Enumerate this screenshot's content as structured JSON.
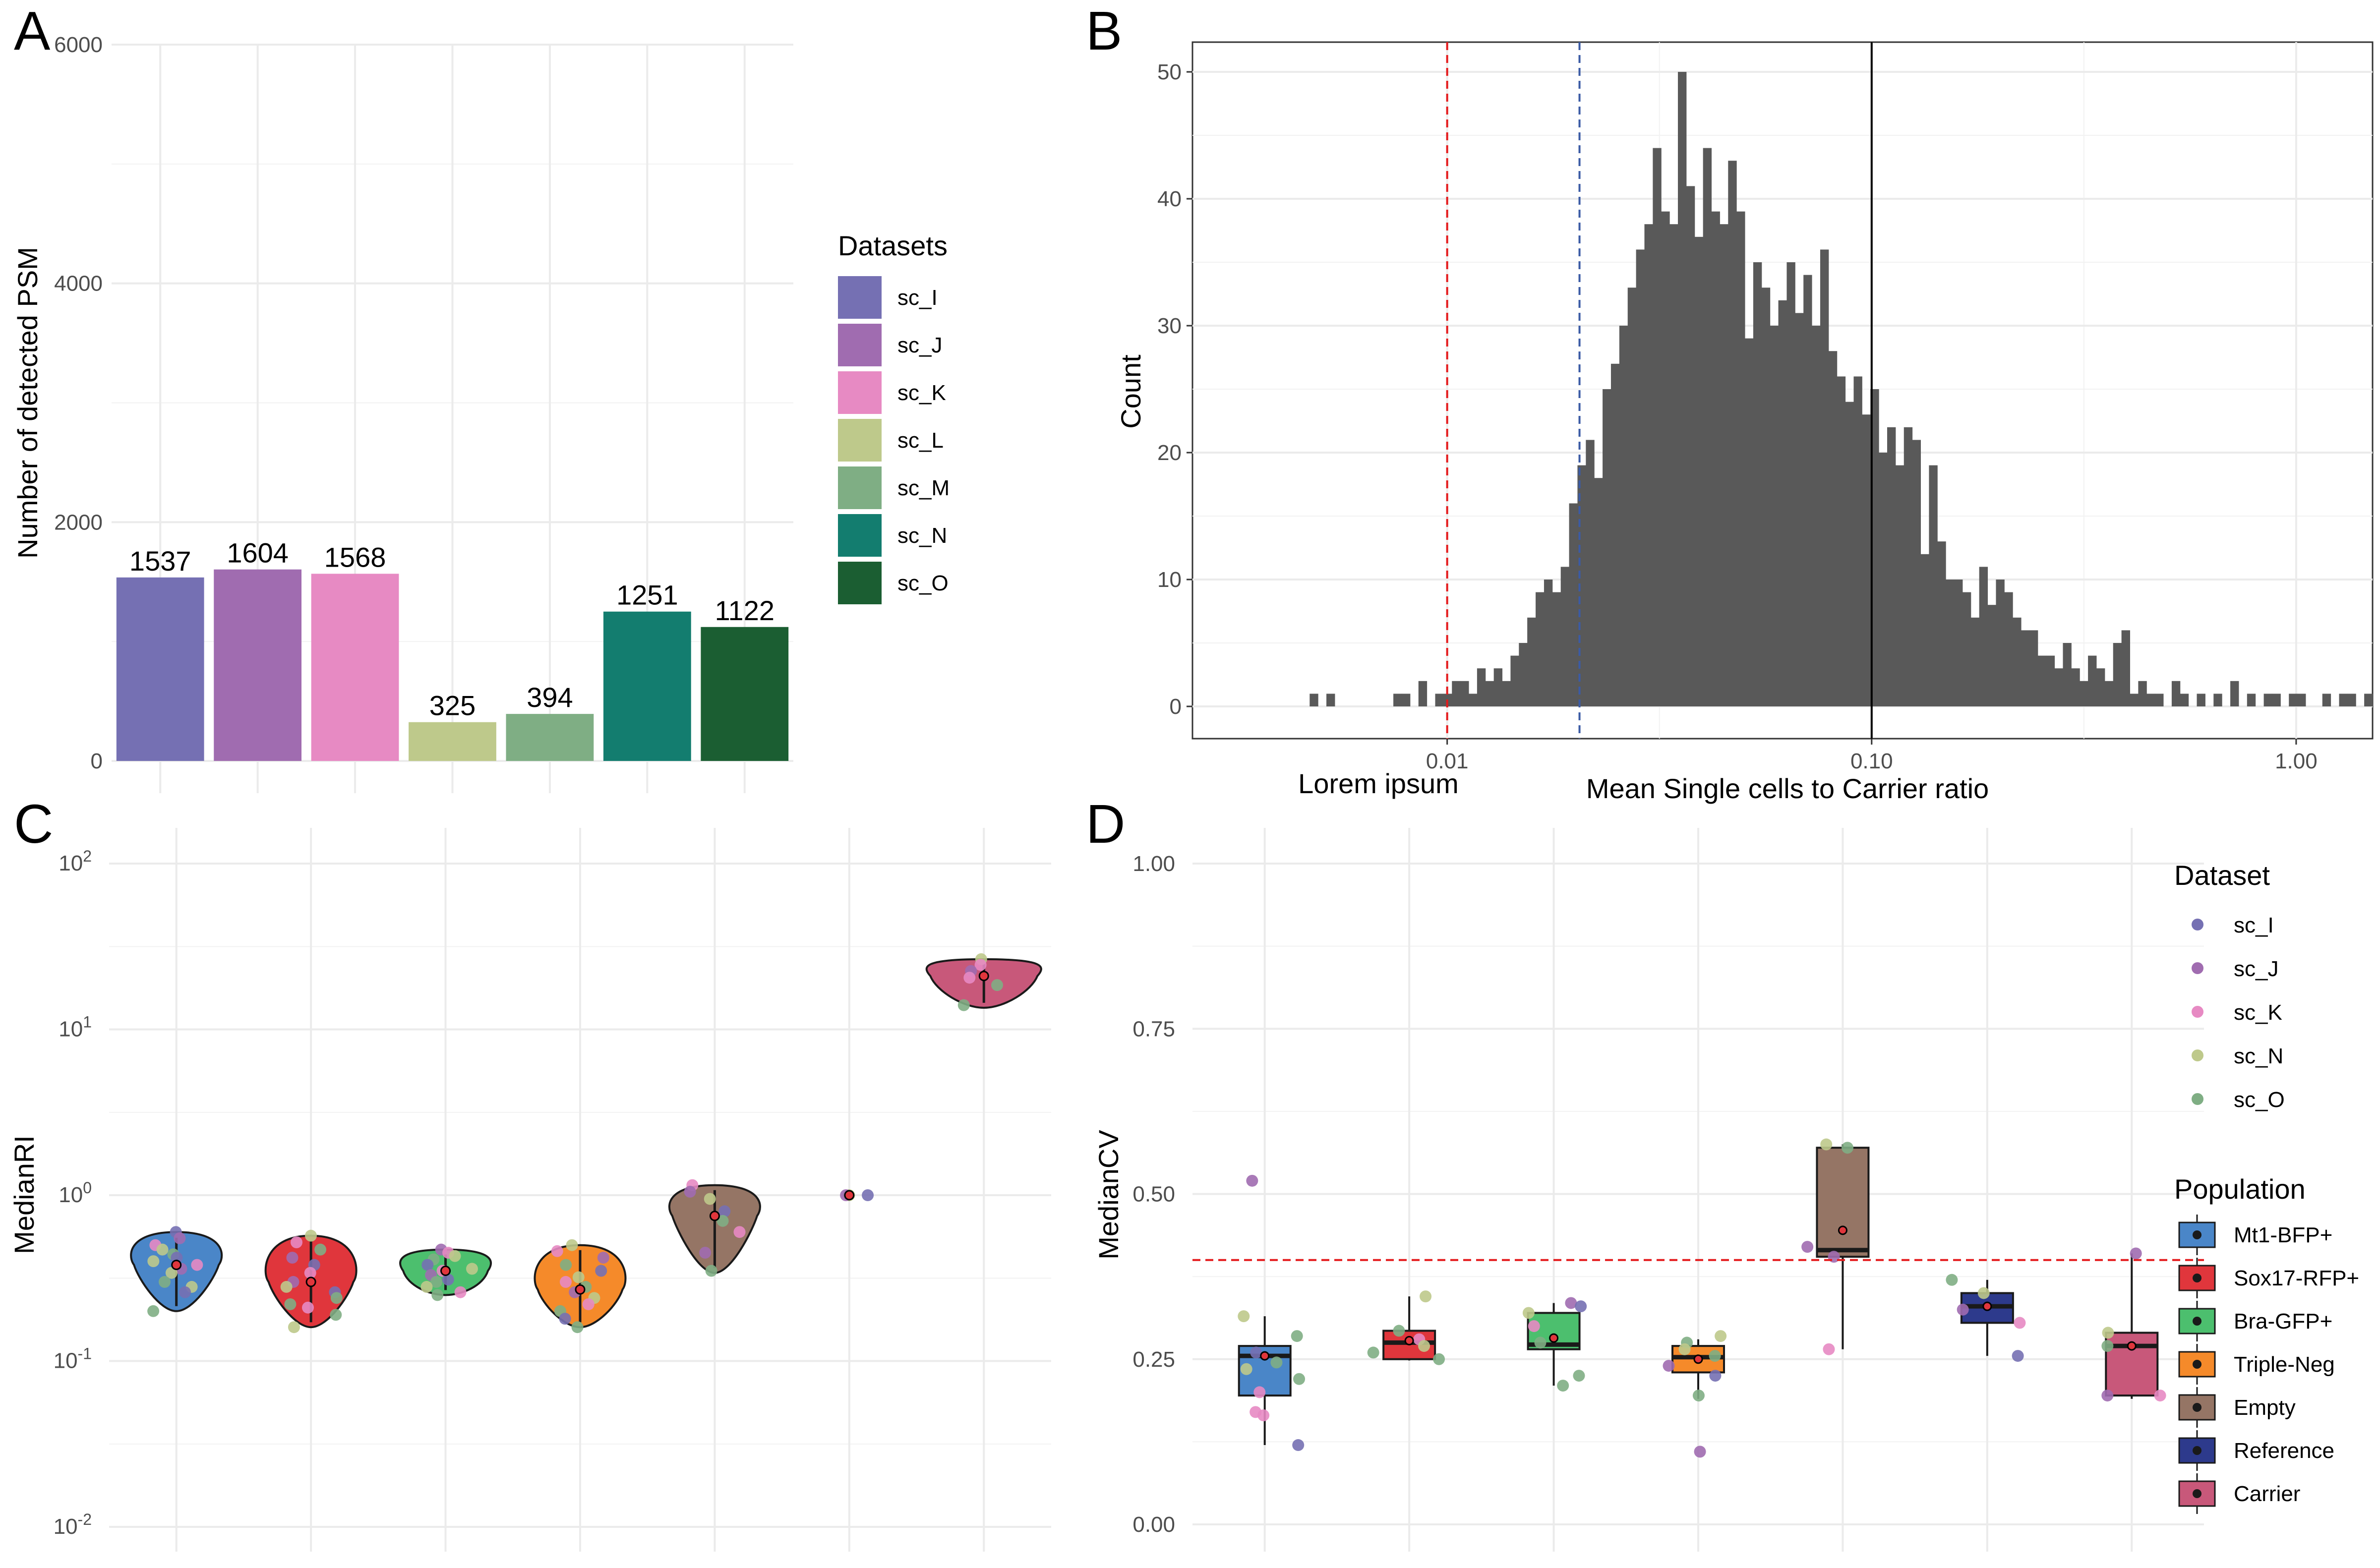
{
  "panels": {
    "A": {
      "letter": "A"
    },
    "B": {
      "letter": "B"
    },
    "C": {
      "letter": "C"
    },
    "D": {
      "letter": "D"
    }
  },
  "chart_data": [
    {
      "panel": "A",
      "type": "bar",
      "ylabel": "Number of detected PSM",
      "ylim": [
        0,
        6000
      ],
      "yticks": [
        0,
        2000,
        4000,
        6000
      ],
      "categories": [
        "sc_I",
        "sc_J",
        "sc_K",
        "sc_L",
        "sc_M",
        "sc_N",
        "sc_O"
      ],
      "values": [
        1537,
        1604,
        1568,
        325,
        394,
        1251,
        1122
      ],
      "colors": [
        "#7570b3",
        "#a06cb0",
        "#e78ac3",
        "#bec98b",
        "#7fae84",
        "#137d6f",
        "#1b5e32"
      ],
      "legend_title": "Datasets",
      "legend_position": "right",
      "grid": true
    },
    {
      "panel": "B",
      "type": "bar",
      "subtype": "histogram",
      "xlabel": "Mean Single cells to Carrier ratio",
      "xscale": "log10",
      "ylabel": "Count",
      "ylim": [
        0,
        52
      ],
      "yticks": [
        0,
        10,
        20,
        30,
        40,
        50
      ],
      "xticks": [
        "0.01",
        "0.10",
        "1.00"
      ],
      "annotation": "Lorem ipsum",
      "bar_color": "#595959",
      "log10_x_range": [
        -2.6,
        0.18
      ],
      "bins": 141,
      "counts": [
        0,
        0,
        0,
        0,
        0,
        0,
        0,
        0,
        0,
        0,
        0,
        0,
        0,
        0,
        1,
        0,
        1,
        0,
        0,
        0,
        0,
        0,
        0,
        0,
        1,
        1,
        0,
        2,
        0,
        1,
        1,
        2,
        2,
        1,
        3,
        2,
        3,
        2,
        4,
        5,
        7,
        9,
        10,
        9,
        11,
        16,
        19,
        21,
        18,
        25,
        27,
        30,
        33,
        36,
        38,
        44,
        39,
        38,
        50,
        41,
        37,
        44,
        39,
        38,
        43,
        39,
        29,
        35,
        33,
        30,
        32,
        35,
        31,
        34,
        30,
        36,
        28,
        26,
        24,
        26,
        23,
        25,
        20,
        22,
        19,
        22,
        21,
        12,
        19,
        13,
        10,
        10,
        9,
        7,
        11,
        8,
        10,
        9,
        7,
        6,
        6,
        4,
        4,
        3,
        5,
        3,
        2,
        4,
        3,
        2,
        5,
        6,
        1,
        2,
        1,
        1,
        0,
        2,
        1,
        0,
        1,
        0,
        1,
        0,
        2,
        0,
        1,
        0,
        1,
        1,
        0,
        1,
        1,
        0,
        0,
        1,
        0,
        1,
        1,
        0,
        1
      ],
      "vlines": [
        {
          "x": 0.01,
          "style": "dashed",
          "color": "#e41a1c"
        },
        {
          "x": 0.0205,
          "style": "dashed",
          "color": "#3b5ba5"
        },
        {
          "x": 0.1,
          "style": "solid",
          "color": "#000000"
        }
      ],
      "grid": true
    },
    {
      "panel": "C",
      "type": "scatter",
      "subtype": "violin",
      "ylabel": "MedianRI",
      "yscale": "log10",
      "ylim": [
        0.01,
        100
      ],
      "yticks": [
        "10^-2",
        "10^-1",
        "10^0",
        "10^1",
        "10^2"
      ],
      "categories": [
        "Mt1-BFP+",
        "Sox17-RFP+",
        "Bra-GFP+",
        "Triple-Neg",
        "Empty",
        "Reference",
        "Carrier"
      ],
      "groups": [
        {
          "name": "Mt1-BFP+",
          "color": "#4a86c8",
          "min": 0.2,
          "max": 0.6,
          "center": 0.38,
          "points": [
            [
              0.6,
              "sc_I"
            ],
            [
              0.55,
              "sc_J"
            ],
            [
              0.5,
              "sc_K"
            ],
            [
              0.47,
              "sc_N"
            ],
            [
              0.44,
              "sc_O"
            ],
            [
              0.42,
              "sc_I"
            ],
            [
              0.4,
              "sc_N"
            ],
            [
              0.38,
              "sc_K"
            ],
            [
              0.36,
              "sc_J"
            ],
            [
              0.34,
              "sc_N"
            ],
            [
              0.3,
              "sc_O"
            ],
            [
              0.28,
              "sc_N"
            ],
            [
              0.26,
              "sc_I"
            ],
            [
              0.2,
              "sc_O"
            ]
          ]
        },
        {
          "name": "Sox17-RFP+",
          "color": "#e0363c",
          "min": 0.16,
          "max": 0.57,
          "center": 0.3,
          "points": [
            [
              0.57,
              "sc_N"
            ],
            [
              0.52,
              "sc_K"
            ],
            [
              0.47,
              "sc_O"
            ],
            [
              0.42,
              "sc_J"
            ],
            [
              0.38,
              "sc_I"
            ],
            [
              0.34,
              "sc_K"
            ],
            [
              0.3,
              "sc_J"
            ],
            [
              0.28,
              "sc_N"
            ],
            [
              0.26,
              "sc_I"
            ],
            [
              0.24,
              "sc_O"
            ],
            [
              0.22,
              "sc_O"
            ],
            [
              0.21,
              "sc_K"
            ],
            [
              0.19,
              "sc_O"
            ],
            [
              0.16,
              "sc_N"
            ]
          ]
        },
        {
          "name": "Bra-GFP+",
          "color": "#4cbf6e",
          "min": 0.25,
          "max": 0.47,
          "center": 0.35,
          "points": [
            [
              0.47,
              "sc_J"
            ],
            [
              0.45,
              "sc_K"
            ],
            [
              0.43,
              "sc_N"
            ],
            [
              0.41,
              "sc_O"
            ],
            [
              0.38,
              "sc_I"
            ],
            [
              0.36,
              "sc_N"
            ],
            [
              0.35,
              "sc_K"
            ],
            [
              0.33,
              "sc_J"
            ],
            [
              0.31,
              "sc_I"
            ],
            [
              0.3,
              "sc_O"
            ],
            [
              0.28,
              "sc_N"
            ],
            [
              0.26,
              "sc_K"
            ],
            [
              0.25,
              "sc_O"
            ]
          ]
        },
        {
          "name": "Triple-Neg",
          "color": "#f58a2a",
          "min": 0.16,
          "max": 0.5,
          "center": 0.27,
          "points": [
            [
              0.5,
              "sc_N"
            ],
            [
              0.46,
              "sc_K"
            ],
            [
              0.42,
              "sc_J"
            ],
            [
              0.38,
              "sc_O"
            ],
            [
              0.35,
              "sc_I"
            ],
            [
              0.32,
              "sc_N"
            ],
            [
              0.3,
              "sc_K"
            ],
            [
              0.28,
              "sc_O"
            ],
            [
              0.26,
              "sc_J"
            ],
            [
              0.24,
              "sc_N"
            ],
            [
              0.22,
              "sc_K"
            ],
            [
              0.2,
              "sc_O"
            ],
            [
              0.18,
              "sc_I"
            ],
            [
              0.16,
              "sc_O"
            ]
          ]
        },
        {
          "name": "Empty",
          "color": "#957565",
          "min": 0.34,
          "max": 1.15,
          "center": 0.75,
          "points": [
            [
              1.15,
              "sc_K"
            ],
            [
              1.05,
              "sc_J"
            ],
            [
              0.95,
              "sc_N"
            ],
            [
              0.8,
              "sc_I"
            ],
            [
              0.7,
              "sc_O"
            ],
            [
              0.6,
              "sc_K"
            ],
            [
              0.45,
              "sc_J"
            ],
            [
              0.35,
              "sc_O"
            ]
          ]
        },
        {
          "name": "Reference",
          "color": "#2d3a8c",
          "min": 1.0,
          "max": 1.0,
          "center": 1.0,
          "points": [
            [
              1.0,
              "sc_N"
            ],
            [
              1.0,
              "sc_J"
            ],
            [
              1.0,
              "sc_I"
            ]
          ]
        },
        {
          "name": "Carrier",
          "color": "#c8587a",
          "min": 13.5,
          "max": 26.5,
          "center": 21.0,
          "points": [
            [
              26.5,
              "sc_N"
            ],
            [
              24.5,
              "sc_K"
            ],
            [
              22.5,
              "sc_J"
            ],
            [
              20.5,
              "sc_K"
            ],
            [
              18.5,
              "sc_O"
            ],
            [
              14.0,
              "sc_O"
            ]
          ]
        }
      ],
      "grid": true
    },
    {
      "panel": "D",
      "type": "scatter",
      "subtype": "boxplot",
      "ylabel": "MedianCV",
      "ylim": [
        0,
        1
      ],
      "yticks": [
        "0.00",
        "0.25",
        "0.50",
        "0.75",
        "1.00"
      ],
      "hline": {
        "y": 0.4,
        "style": "dashed",
        "color": "#e41a1c"
      },
      "categories": [
        "Mt1-BFP+",
        "Sox17-RFP+",
        "Bra-GFP+",
        "Triple-Neg",
        "Empty",
        "Reference",
        "Carrier"
      ],
      "boxes": [
        {
          "name": "Mt1-BFP+",
          "color": "#4a86c8",
          "q1": 0.195,
          "median": 0.255,
          "q3": 0.27,
          "lo": 0.12,
          "hi": 0.315,
          "mean": 0.255,
          "points": [
            [
              0.52,
              "sc_J"
            ],
            [
              0.315,
              "sc_N"
            ],
            [
              0.285,
              "sc_O"
            ],
            [
              0.26,
              "sc_I"
            ],
            [
              0.245,
              "sc_O"
            ],
            [
              0.235,
              "sc_N"
            ],
            [
              0.22,
              "sc_O"
            ],
            [
              0.2,
              "sc_K"
            ],
            [
              0.17,
              "sc_K"
            ],
            [
              0.165,
              "sc_K"
            ],
            [
              0.12,
              "sc_I"
            ]
          ]
        },
        {
          "name": "Sox17-RFP+",
          "color": "#e0363c",
          "q1": 0.25,
          "median": 0.275,
          "q3": 0.293,
          "lo": 0.248,
          "hi": 0.345,
          "mean": 0.278,
          "points": [
            [
              0.345,
              "sc_N"
            ],
            [
              0.293,
              "sc_O"
            ],
            [
              0.28,
              "sc_K"
            ],
            [
              0.27,
              "sc_N"
            ],
            [
              0.26,
              "sc_O"
            ],
            [
              0.25,
              "sc_O"
            ]
          ]
        },
        {
          "name": "Bra-GFP+",
          "color": "#4cbf6e",
          "q1": 0.265,
          "median": 0.272,
          "q3": 0.32,
          "lo": 0.21,
          "hi": 0.335,
          "mean": 0.282,
          "points": [
            [
              0.335,
              "sc_J"
            ],
            [
              0.33,
              "sc_I"
            ],
            [
              0.32,
              "sc_N"
            ],
            [
              0.3,
              "sc_K"
            ],
            [
              0.275,
              "sc_O"
            ],
            [
              0.225,
              "sc_O"
            ],
            [
              0.21,
              "sc_O"
            ]
          ]
        },
        {
          "name": "Triple-Neg",
          "color": "#f58a2a",
          "q1": 0.23,
          "median": 0.253,
          "q3": 0.27,
          "lo": 0.19,
          "hi": 0.28,
          "mean": 0.25,
          "points": [
            [
              0.285,
              "sc_N"
            ],
            [
              0.275,
              "sc_O"
            ],
            [
              0.265,
              "sc_N"
            ],
            [
              0.255,
              "sc_O"
            ],
            [
              0.24,
              "sc_J"
            ],
            [
              0.225,
              "sc_I"
            ],
            [
              0.195,
              "sc_O"
            ],
            [
              0.11,
              "sc_J"
            ]
          ]
        },
        {
          "name": "Empty",
          "color": "#957565",
          "q1": 0.405,
          "median": 0.415,
          "q3": 0.57,
          "lo": 0.265,
          "hi": 0.575,
          "mean": 0.445,
          "points": [
            [
              0.575,
              "sc_N"
            ],
            [
              0.57,
              "sc_O"
            ],
            [
              0.42,
              "sc_J"
            ],
            [
              0.405,
              "sc_J"
            ],
            [
              0.265,
              "sc_K"
            ]
          ]
        },
        {
          "name": "Reference",
          "color": "#2d3a8c",
          "q1": 0.305,
          "median": 0.33,
          "q3": 0.35,
          "lo": 0.255,
          "hi": 0.37,
          "mean": 0.33,
          "points": [
            [
              0.37,
              "sc_O"
            ],
            [
              0.35,
              "sc_N"
            ],
            [
              0.325,
              "sc_J"
            ],
            [
              0.305,
              "sc_K"
            ],
            [
              0.255,
              "sc_I"
            ]
          ]
        },
        {
          "name": "Carrier",
          "color": "#c8587a",
          "q1": 0.195,
          "median": 0.27,
          "q3": 0.29,
          "lo": 0.19,
          "hi": 0.41,
          "mean": 0.27,
          "points": [
            [
              0.41,
              "sc_J"
            ],
            [
              0.29,
              "sc_N"
            ],
            [
              0.27,
              "sc_O"
            ],
            [
              0.195,
              "sc_K"
            ],
            [
              0.195,
              "sc_J"
            ]
          ]
        }
      ],
      "grid": true
    }
  ],
  "legend_datasets_D": {
    "title": "Dataset",
    "items": [
      {
        "label": "sc_I",
        "color": "#7570b3"
      },
      {
        "label": "sc_J",
        "color": "#a06cb0"
      },
      {
        "label": "sc_K",
        "color": "#e78ac3"
      },
      {
        "label": "sc_N",
        "color": "#bec98b"
      },
      {
        "label": "sc_O",
        "color": "#7fae84"
      }
    ]
  },
  "legend_population_D": {
    "title": "Population",
    "items": [
      {
        "label": "Mt1-BFP+",
        "color": "#4a86c8"
      },
      {
        "label": "Sox17-RFP+",
        "color": "#e0363c"
      },
      {
        "label": "Bra-GFP+",
        "color": "#4cbf6e"
      },
      {
        "label": "Triple-Neg",
        "color": "#f58a2a"
      },
      {
        "label": "Empty",
        "color": "#957565"
      },
      {
        "label": "Reference",
        "color": "#2d3a8c"
      },
      {
        "label": "Carrier",
        "color": "#c8587a"
      }
    ]
  },
  "point_colors": {
    "sc_I": "#7570b3",
    "sc_J": "#a06cb0",
    "sc_K": "#e78ac3",
    "sc_L": "#bec98b",
    "sc_M": "#7fae84",
    "sc_N": "#bec98b",
    "sc_O": "#7fae84"
  }
}
